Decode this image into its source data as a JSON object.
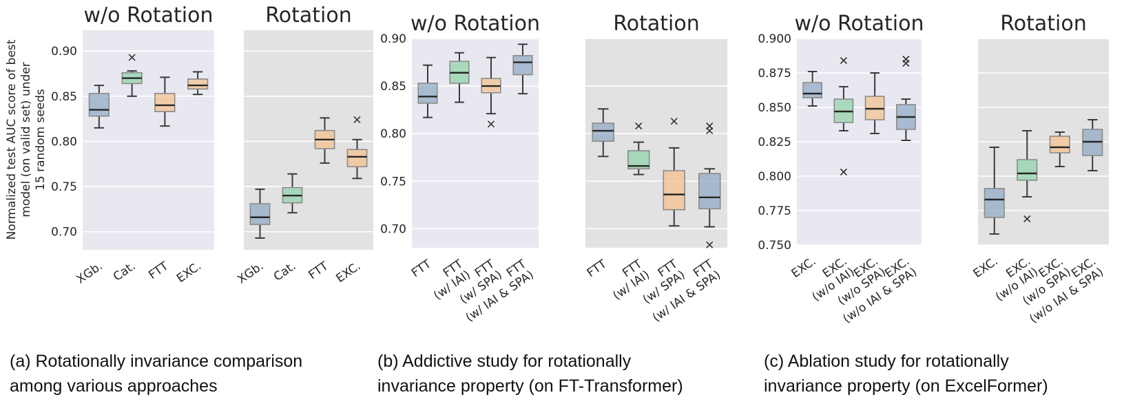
{
  "y_axis_label_lines": [
    "Normalized test AUC score of best",
    "model (on valid set) under",
    "15 random seeds"
  ],
  "captions": [
    {
      "line1": "(a) Rotationally invariance comparison",
      "line2": "among various approaches"
    },
    {
      "line1": "(b) Addictive study for rotationally",
      "line2": "invariance property (on FT-Transformer)"
    },
    {
      "line1": "(c) Ablation study for rotationally",
      "line2": "invariance property (on ExcelFormer)"
    }
  ],
  "colors": {
    "blue": "#8fa9c4",
    "green": "#8fd3a8",
    "orange": "#f4c08e",
    "median": "#262626",
    "whisker": "#3a3a3a",
    "bg_norot": "#e8e8f0",
    "bg_rot": "#e2e2e2",
    "grid": "#ffffff"
  },
  "chart_data": [
    {
      "type": "box",
      "title": "w/o Rotation",
      "group": "a",
      "ylim": [
        0.68,
        0.923
      ],
      "yticks": [
        "0.70",
        "0.75",
        "0.80",
        "0.85",
        "0.90"
      ],
      "show_yticks": true,
      "yticks_side": "left",
      "categories": [
        [
          "XGb."
        ],
        [
          "Cat."
        ],
        [
          "FTT"
        ],
        [
          "EXC."
        ]
      ],
      "colors": [
        "blue",
        "green",
        "orange",
        "orange"
      ],
      "boxes": [
        {
          "q1": 0.828,
          "median": 0.835,
          "q3": 0.853,
          "low": 0.815,
          "high": 0.862,
          "outliers": []
        },
        {
          "q1": 0.864,
          "median": 0.87,
          "q3": 0.876,
          "low": 0.85,
          "high": 0.878,
          "outliers": [
            0.893
          ]
        },
        {
          "q1": 0.833,
          "median": 0.84,
          "q3": 0.853,
          "low": 0.817,
          "high": 0.871,
          "outliers": []
        },
        {
          "q1": 0.858,
          "median": 0.862,
          "q3": 0.869,
          "low": 0.852,
          "high": 0.877,
          "outliers": []
        }
      ]
    },
    {
      "type": "box",
      "title": "Rotation",
      "group": "a",
      "ylim": [
        0.68,
        0.923
      ],
      "yticks": [
        "0.70",
        "0.75",
        "0.80",
        "0.85",
        "0.90"
      ],
      "show_yticks": false,
      "categories": [
        [
          "XGb."
        ],
        [
          "Cat."
        ],
        [
          "FTT"
        ],
        [
          "EXC."
        ]
      ],
      "colors": [
        "blue",
        "green",
        "orange",
        "orange"
      ],
      "boxes": [
        {
          "q1": 0.708,
          "median": 0.716,
          "q3": 0.731,
          "low": 0.693,
          "high": 0.747,
          "outliers": []
        },
        {
          "q1": 0.732,
          "median": 0.74,
          "q3": 0.749,
          "low": 0.721,
          "high": 0.764,
          "outliers": []
        },
        {
          "q1": 0.792,
          "median": 0.802,
          "q3": 0.812,
          "low": 0.776,
          "high": 0.826,
          "outliers": []
        },
        {
          "q1": 0.772,
          "median": 0.783,
          "q3": 0.791,
          "low": 0.759,
          "high": 0.802,
          "outliers": [
            0.824
          ]
        }
      ]
    },
    {
      "type": "box",
      "title": "w/o Rotation",
      "group": "b",
      "ylim": [
        0.68,
        0.9
      ],
      "yticks": [
        "0.70",
        "0.75",
        "0.80",
        "0.85",
        "0.90"
      ],
      "show_yticks": true,
      "yticks_side": "left",
      "categories": [
        [
          "FTT"
        ],
        [
          "FTT",
          "(w/ IAI)"
        ],
        [
          "FTT",
          "(w/ SPA)"
        ],
        [
          "FTT",
          "(w/ IAI & SPA)"
        ]
      ],
      "colors": [
        "blue",
        "green",
        "orange",
        "blue"
      ],
      "boxes": [
        {
          "q1": 0.832,
          "median": 0.839,
          "q3": 0.853,
          "low": 0.817,
          "high": 0.872,
          "outliers": []
        },
        {
          "q1": 0.853,
          "median": 0.864,
          "q3": 0.876,
          "low": 0.833,
          "high": 0.885,
          "outliers": []
        },
        {
          "q1": 0.843,
          "median": 0.85,
          "q3": 0.858,
          "low": 0.821,
          "high": 0.88,
          "outliers": [
            0.81
          ]
        },
        {
          "q1": 0.862,
          "median": 0.875,
          "q3": 0.882,
          "low": 0.842,
          "high": 0.894,
          "outliers": []
        }
      ]
    },
    {
      "type": "box",
      "title": "Rotation",
      "group": "b",
      "ylim": [
        0.68,
        0.9
      ],
      "yticks": [
        "0.70",
        "0.75",
        "0.80",
        "0.85",
        "0.90"
      ],
      "show_yticks": false,
      "categories": [
        [
          "FTT"
        ],
        [
          "FTT",
          "(w/ IAI)"
        ],
        [
          "FTT",
          "(w/ SPA)"
        ],
        [
          "FTT",
          "(w/ IAI & SPA)"
        ]
      ],
      "colors": [
        "blue",
        "green",
        "orange",
        "blue"
      ],
      "boxes": [
        {
          "q1": 0.792,
          "median": 0.803,
          "q3": 0.811,
          "low": 0.776,
          "high": 0.826,
          "outliers": []
        },
        {
          "q1": 0.763,
          "median": 0.766,
          "q3": 0.782,
          "low": 0.757,
          "high": 0.791,
          "outliers": [
            0.808
          ]
        },
        {
          "q1": 0.72,
          "median": 0.736,
          "q3": 0.761,
          "low": 0.703,
          "high": 0.785,
          "outliers": [
            0.813
          ]
        },
        {
          "q1": 0.721,
          "median": 0.733,
          "q3": 0.758,
          "low": 0.702,
          "high": 0.763,
          "outliers": [
            0.803,
            0.808,
            0.683
          ]
        }
      ]
    },
    {
      "type": "box",
      "title": "w/o Rotation",
      "group": "c",
      "ylim": [
        0.75,
        0.9
      ],
      "yticks": [
        "0.750",
        "0.775",
        "0.800",
        "0.825",
        "0.850",
        "0.875",
        "0.900"
      ],
      "show_yticks": true,
      "yticks_side": "left",
      "categories": [
        [
          "EXC."
        ],
        [
          "EXC.",
          "(w/o IAI)"
        ],
        [
          "EXC.",
          "(w/o SPA)"
        ],
        [
          "EXC.",
          "(w/o IAI & SPA)"
        ]
      ],
      "colors": [
        "blue",
        "green",
        "orange",
        "blue"
      ],
      "boxes": [
        {
          "q1": 0.857,
          "median": 0.86,
          "q3": 0.868,
          "low": 0.851,
          "high": 0.876,
          "outliers": []
        },
        {
          "q1": 0.839,
          "median": 0.847,
          "q3": 0.856,
          "low": 0.833,
          "high": 0.865,
          "outliers": [
            0.884,
            0.803
          ]
        },
        {
          "q1": 0.841,
          "median": 0.849,
          "q3": 0.858,
          "low": 0.831,
          "high": 0.875,
          "outliers": []
        },
        {
          "q1": 0.834,
          "median": 0.843,
          "q3": 0.852,
          "low": 0.826,
          "high": 0.856,
          "outliers": [
            0.882,
            0.885
          ]
        }
      ]
    },
    {
      "type": "box",
      "title": "Rotation",
      "group": "c",
      "ylim": [
        0.75,
        0.9
      ],
      "yticks": [
        "0.750",
        "0.775",
        "0.800",
        "0.825",
        "0.850",
        "0.875",
        "0.900"
      ],
      "show_yticks": false,
      "categories": [
        [
          "EXC."
        ],
        [
          "EXC.",
          "(w/o IAI)"
        ],
        [
          "EXC.",
          "(w/o SPA)"
        ],
        [
          "EXC.",
          "(w/o IAI & SPA)"
        ]
      ],
      "colors": [
        "blue",
        "green",
        "orange",
        "blue"
      ],
      "boxes": [
        {
          "q1": 0.77,
          "median": 0.783,
          "q3": 0.791,
          "low": 0.758,
          "high": 0.821,
          "outliers": []
        },
        {
          "q1": 0.797,
          "median": 0.802,
          "q3": 0.812,
          "low": 0.785,
          "high": 0.833,
          "outliers": [
            0.769
          ]
        },
        {
          "q1": 0.817,
          "median": 0.821,
          "q3": 0.829,
          "low": 0.807,
          "high": 0.832,
          "outliers": []
        },
        {
          "q1": 0.815,
          "median": 0.825,
          "q3": 0.834,
          "low": 0.804,
          "high": 0.841,
          "outliers": []
        }
      ]
    }
  ]
}
